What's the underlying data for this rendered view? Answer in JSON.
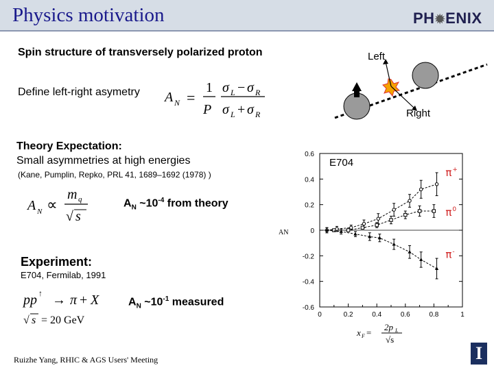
{
  "slide": {
    "title": "Physics motivation",
    "logo": {
      "pre": "PH",
      "post": "ENIX"
    },
    "spin_title": "Spin structure of transversely polarized proton",
    "define_label": "Define left-right asymetry",
    "diagram": {
      "left_label": "Left",
      "right_label": "Right"
    },
    "theory": {
      "line1": "Theory Expectation:",
      "line2": "Small asymmetries at high energies"
    },
    "reference": "(Kane, Pumplin, Repko, PRL 41, 1689–1692 (1978) )",
    "an_theory": {
      "a": "A",
      "sub": "N",
      "mid": " ~10",
      "sup": "-4",
      "tail": " from theory"
    },
    "experiment": "Experiment:",
    "experiment_detail": "E704, Fermilab, 1991",
    "an_measured": {
      "a": "A",
      "sub": "N",
      "mid": " ~10",
      "sup": "-1",
      "tail": " measured"
    },
    "footer": "Ruizhe Yang, RHIC & AGS Users' Meeting",
    "ui_logo": "I"
  },
  "chart_data": {
    "type": "scatter",
    "panel_label": "E704",
    "ylabel": "A_N",
    "xlabel_formula": {
      "x": "x",
      "sub": "F",
      "eq": " = ",
      "num": "2p",
      "num_sub": "L",
      "den": "√s"
    },
    "xlim": [
      0,
      1
    ],
    "ylim": [
      -0.6,
      0.6
    ],
    "x_ticks": [
      "0",
      "0.2",
      "0.4",
      "0.6",
      "0.8",
      "1"
    ],
    "y_ticks": [
      "0.6",
      "0.4",
      "0.2",
      "0",
      "-0.2",
      "-0.4",
      "-0.6"
    ],
    "y_tick_values": [
      0.6,
      0.4,
      0.2,
      0,
      -0.2,
      -0.4,
      -0.6
    ],
    "series": [
      {
        "name": "π+",
        "marker": "circle",
        "points": [
          [
            0.05,
            0.0
          ],
          [
            0.12,
            0.01
          ],
          [
            0.22,
            0.02
          ],
          [
            0.31,
            0.05
          ],
          [
            0.41,
            0.09
          ],
          [
            0.52,
            0.16
          ],
          [
            0.63,
            0.23
          ],
          [
            0.71,
            0.32
          ],
          [
            0.82,
            0.36
          ]
        ],
        "errors": [
          0.02,
          0.02,
          0.02,
          0.03,
          0.04,
          0.05,
          0.05,
          0.07,
          0.09
        ]
      },
      {
        "name": "π0",
        "marker": "square",
        "points": [
          [
            0.1,
            0.0
          ],
          [
            0.2,
            0.0
          ],
          [
            0.3,
            0.02
          ],
          [
            0.4,
            0.04
          ],
          [
            0.5,
            0.08
          ],
          [
            0.6,
            0.12
          ],
          [
            0.7,
            0.15
          ],
          [
            0.8,
            0.15
          ]
        ],
        "errors": [
          0.01,
          0.01,
          0.01,
          0.02,
          0.03,
          0.03,
          0.04,
          0.05
        ]
      },
      {
        "name": "π-",
        "marker": "triangle",
        "points": [
          [
            0.05,
            0.0
          ],
          [
            0.15,
            -0.01
          ],
          [
            0.25,
            -0.03
          ],
          [
            0.35,
            -0.05
          ],
          [
            0.42,
            -0.06
          ],
          [
            0.52,
            -0.11
          ],
          [
            0.63,
            -0.17
          ],
          [
            0.71,
            -0.23
          ],
          [
            0.82,
            -0.3
          ]
        ],
        "errors": [
          0.02,
          0.02,
          0.02,
          0.03,
          0.03,
          0.04,
          0.05,
          0.06,
          0.08
        ]
      }
    ],
    "colors": {
      "points": "#000000",
      "curve": "#000000"
    }
  }
}
